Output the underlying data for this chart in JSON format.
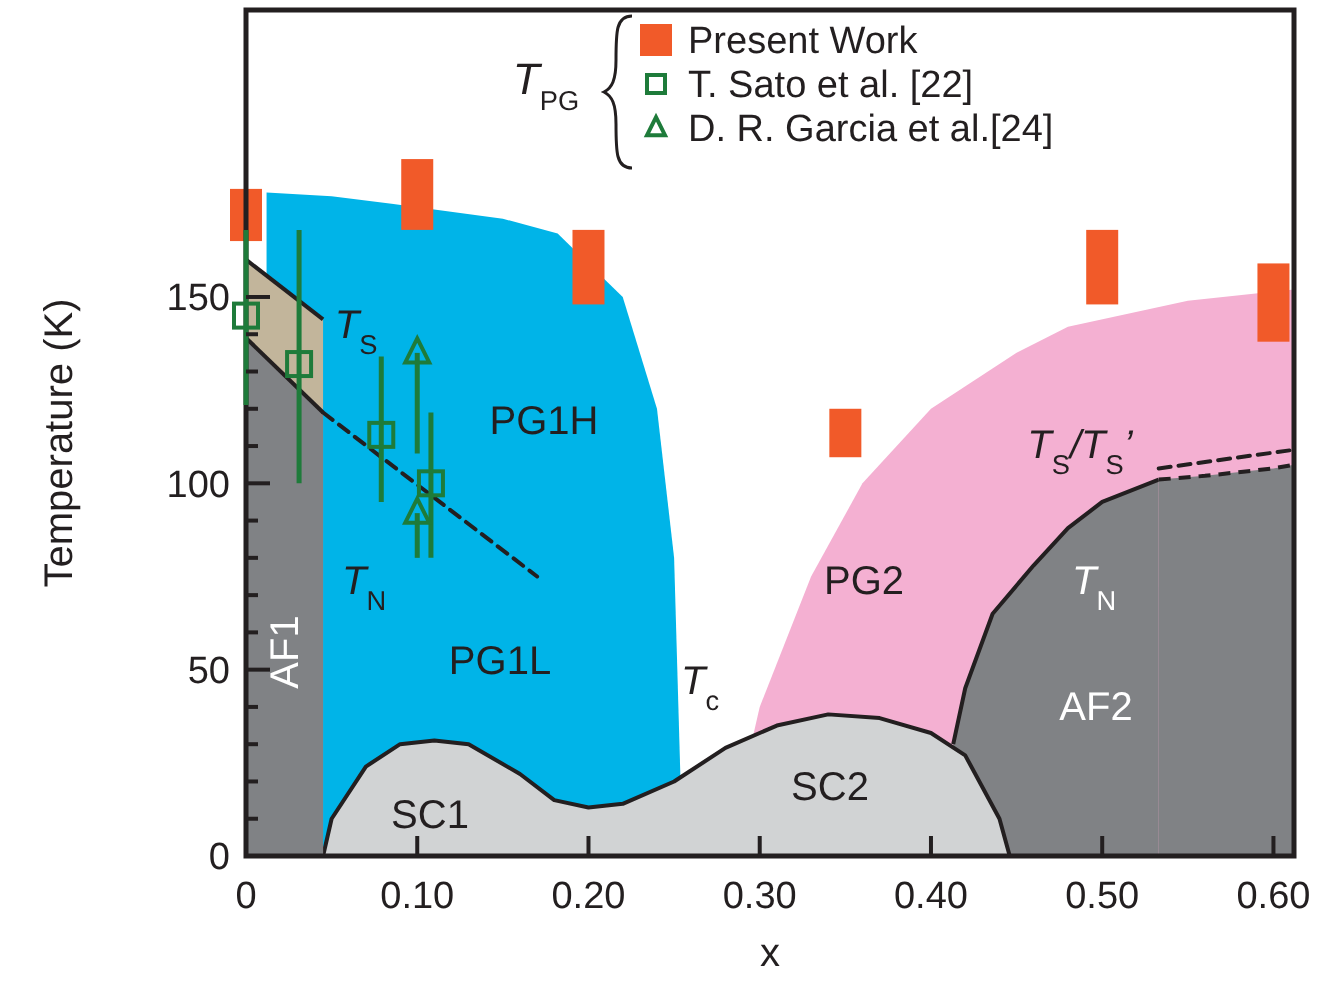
{
  "chart_data": {
    "type": "scatter",
    "xlabel": "x",
    "ylabel": "Temperature (K)",
    "legend_title": "T$_{PG}$",
    "legend": "top right",
    "grid": false,
    "xlim": [
      0,
      0.612
    ],
    "ylim": [
      0,
      227
    ],
    "xticks": [
      0,
      {
        "value": 0.1,
        "label": "0.10"
      },
      {
        "value": 0.2,
        "label": "0.20"
      },
      {
        "value": 0.3,
        "label": "0.30"
      },
      {
        "value": 0.4,
        "label": "0.40"
      },
      {
        "value": 0.5,
        "label": "0.50"
      },
      {
        "value": 0.6,
        "label": "0.60"
      }
    ],
    "yticks": [
      0,
      {
        "value": 10,
        "label": null
      },
      {
        "value": 20,
        "label": null
      },
      {
        "value": 30,
        "label": null
      },
      {
        "value": 40,
        "label": null
      },
      50,
      {
        "value": 60,
        "label": null
      },
      {
        "value": 70,
        "label": null
      },
      {
        "value": 80,
        "label": null
      },
      {
        "value": 90,
        "label": null
      },
      100,
      {
        "value": 110,
        "label": null
      },
      {
        "value": 120,
        "label": null
      },
      {
        "value": 130,
        "label": null
      },
      {
        "value": 140,
        "label": null
      },
      150
    ],
    "series": [
      {
        "type": "area",
        "color": "#00b4e8",
        "x": [
          0.012,
          0.05,
          0.085,
          0.15,
          0.182,
          0.22,
          0.24,
          0.25,
          0.255
        ],
        "values": [
          178,
          177,
          175,
          171,
          167,
          150,
          120,
          80,
          0
        ]
      },
      {
        "type": "area",
        "color": "#f4b0d2",
        "x": [
          0.28,
          0.3,
          0.33,
          0.36,
          0.4,
          0.45,
          0.48,
          0.55,
          0.612
        ],
        "values": [
          0,
          40,
          75,
          100,
          120,
          135,
          142,
          149,
          152
        ]
      },
      {
        "type": "area",
        "color": "#808285",
        "line_style": "solid",
        "x": [
          0.413,
          0.42,
          0.436,
          0.46,
          0.48,
          0.5,
          0.533
        ],
        "values": [
          30,
          45,
          65,
          78,
          88,
          95,
          101
        ]
      },
      {
        "type": "area",
        "color": "#808285",
        "line_style": "dashed",
        "x": [
          0.533,
          0.56,
          0.6,
          0.612
        ],
        "values": [
          101,
          102,
          104,
          105
        ]
      },
      {
        "type": "area",
        "color": "#d1d3d4",
        "line_style": "solid",
        "x": [
          0.045,
          0.05,
          0.07,
          0.09,
          0.11,
          0.13,
          0.16,
          0.18,
          0.2,
          0.22,
          0.25,
          0.28,
          0.31,
          0.34,
          0.37,
          0.4,
          0.42,
          0.44,
          0.446
        ],
        "values": [
          0,
          10,
          24,
          30,
          31,
          30,
          22,
          15,
          13,
          14,
          20,
          29,
          35,
          38,
          37,
          33,
          27,
          10,
          0
        ]
      },
      {
        "type": "area",
        "color": "#c2b59b",
        "line_style": "solid",
        "x": [
          0,
          0.045
        ],
        "values": [
          160,
          144
        ]
      },
      {
        "type": "area",
        "color": "#808285",
        "line_style": "solid",
        "x": [
          0,
          0.045
        ],
        "values": [
          139,
          119
        ]
      },
      {
        "type": "line",
        "color": "#231f20",
        "line_style": "dashed",
        "x": [
          0.045,
          0.17
        ],
        "values": [
          119,
          75
        ]
      },
      {
        "type": "line",
        "color": "#231f20",
        "line_style": "dashed",
        "x": [
          0.533,
          0.612
        ],
        "values": [
          104,
          109
        ]
      },
      {
        "type": "bar",
        "name": "Present Work",
        "color": "#f15a29",
        "x": [
          0,
          0.1,
          0.2,
          0.35,
          0.5,
          0.6
        ],
        "base": [
          165,
          168,
          148,
          107,
          148,
          138
        ],
        "values": [
          14,
          19,
          20,
          13,
          20,
          21
        ]
      },
      {
        "name": "T. Sato et al. [22]",
        "color": "#1e7b3a",
        "marker": "square",
        "x": [
          0,
          0.031,
          0.079,
          0.108
        ],
        "values": [
          145,
          132,
          113,
          100
        ],
        "errors": [
          [
            121,
            168
          ],
          [
            100,
            168
          ],
          [
            95,
            134
          ],
          [
            80,
            119
          ]
        ]
      },
      {
        "name": "D. R. Garcia et al.[24]",
        "color": "#1e7b3a",
        "marker": "triangle",
        "x": [
          0.1,
          0.1
        ],
        "values": [
          135,
          92
        ],
        "errors": [
          [
            108,
            135
          ],
          [
            80,
            92
          ]
        ]
      }
    ],
    "annotations": [
      "AF1",
      "PG1H",
      "PG1L",
      "SC1",
      "SC2",
      "PG2",
      "AF2",
      "T$_{S}$",
      "T$_{N}$",
      "T$_{c}$",
      "T$_{S}$/T$_{S}$’",
      "T$_{N}$"
    ]
  }
}
